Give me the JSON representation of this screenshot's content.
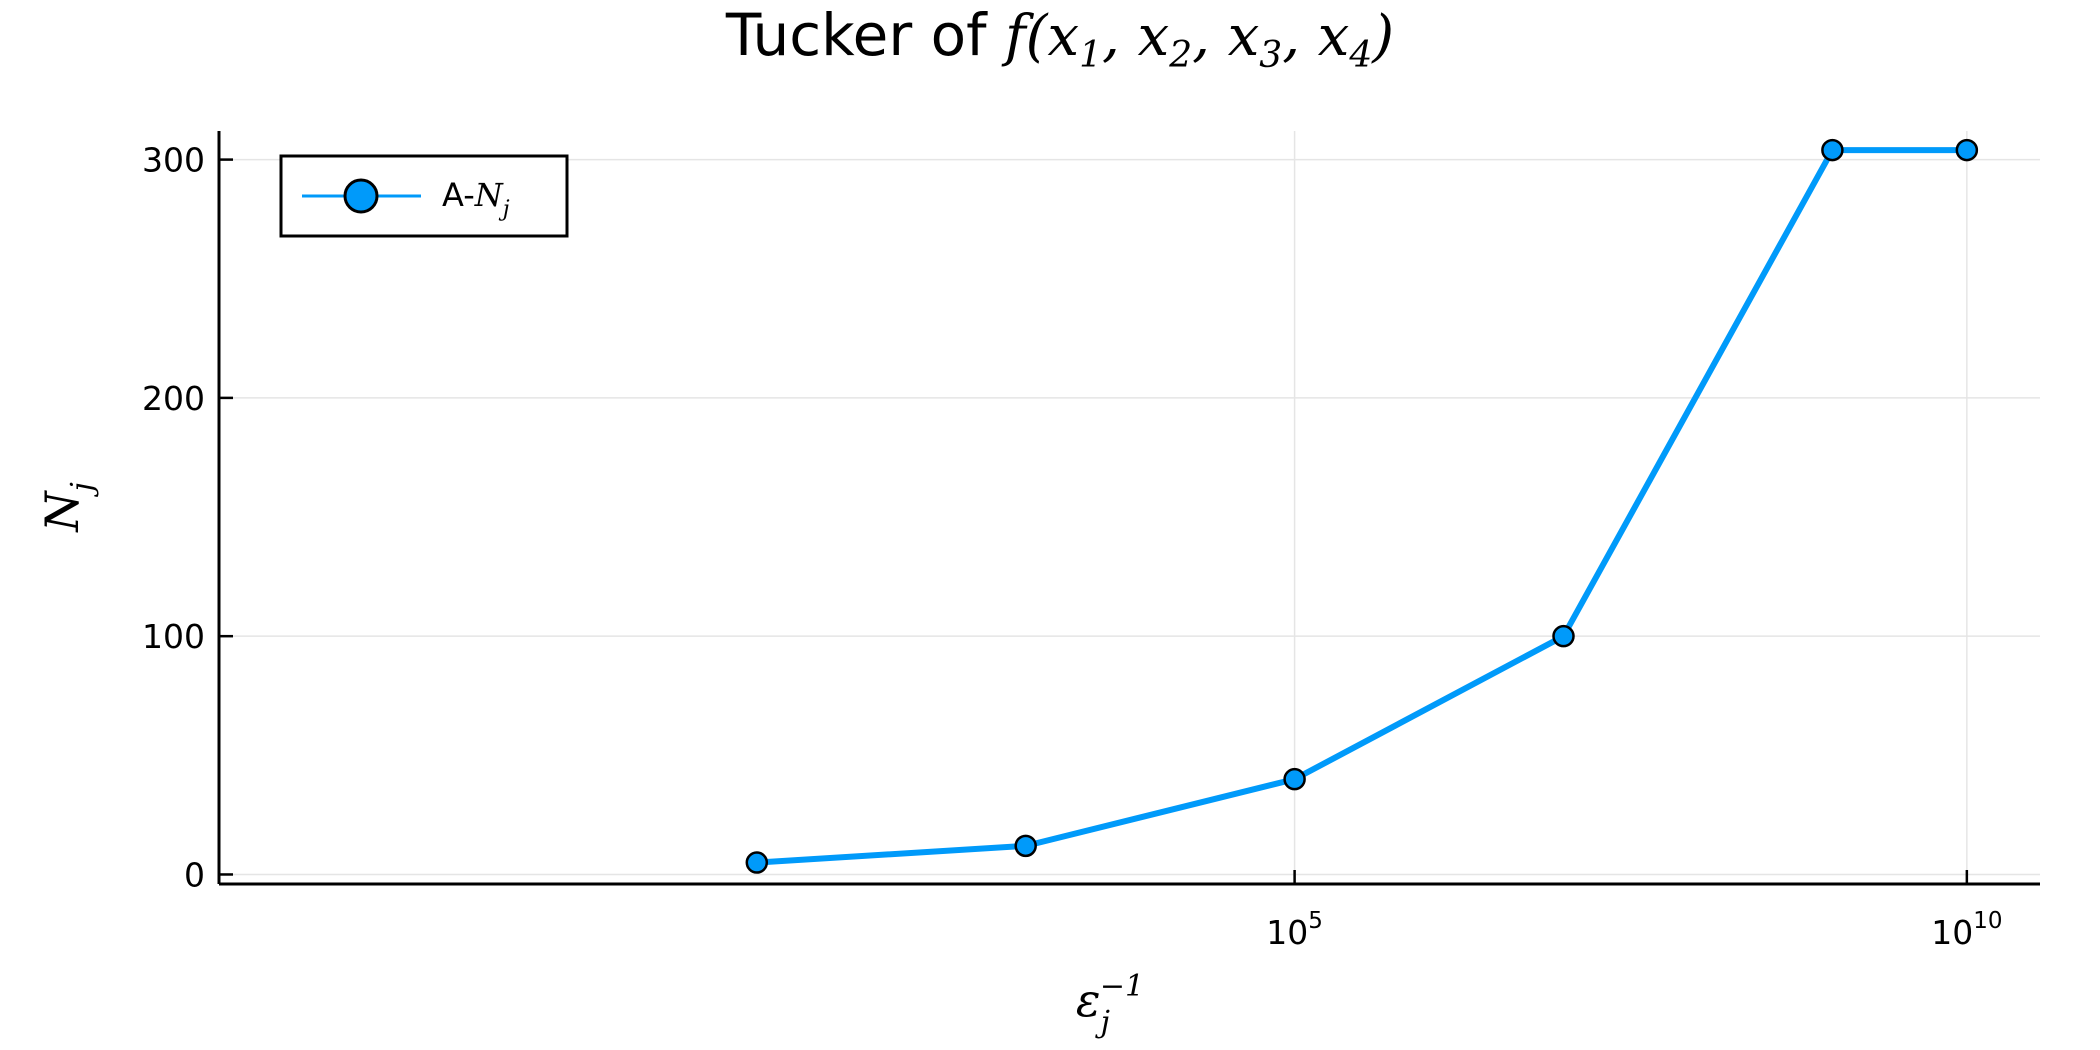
{
  "chart_data": {
    "type": "line",
    "title": {
      "text": "Tucker of ",
      "math": "f(x1, x2, x3, x4)"
    },
    "xlabel": {
      "base": "ε",
      "sub": "j",
      "sup": "−1"
    },
    "ylabel": {
      "base": "N",
      "sub": "j"
    },
    "x_scale": "log10",
    "xlim": [
      0.001,
      35000000000.0
    ],
    "ylim": [
      -4,
      312
    ],
    "x_ticks": [
      {
        "value": 100000.0,
        "base": "10",
        "exp": "5"
      },
      {
        "value": 10000000000.0,
        "base": "10",
        "exp": "10"
      }
    ],
    "y_ticks": [
      0,
      100,
      200,
      300
    ],
    "grid": true,
    "legend": {
      "position": "top-left",
      "prefix": "A-",
      "math": {
        "base": "N",
        "sub": "j"
      }
    },
    "series": [
      {
        "name": "A-N_j",
        "color": "#009AFA",
        "marker": "circle",
        "x": [
          10,
          1000,
          100000,
          10000000,
          1000000000,
          10000000000
        ],
        "y": [
          5,
          12,
          40,
          100,
          304,
          304
        ]
      }
    ]
  }
}
